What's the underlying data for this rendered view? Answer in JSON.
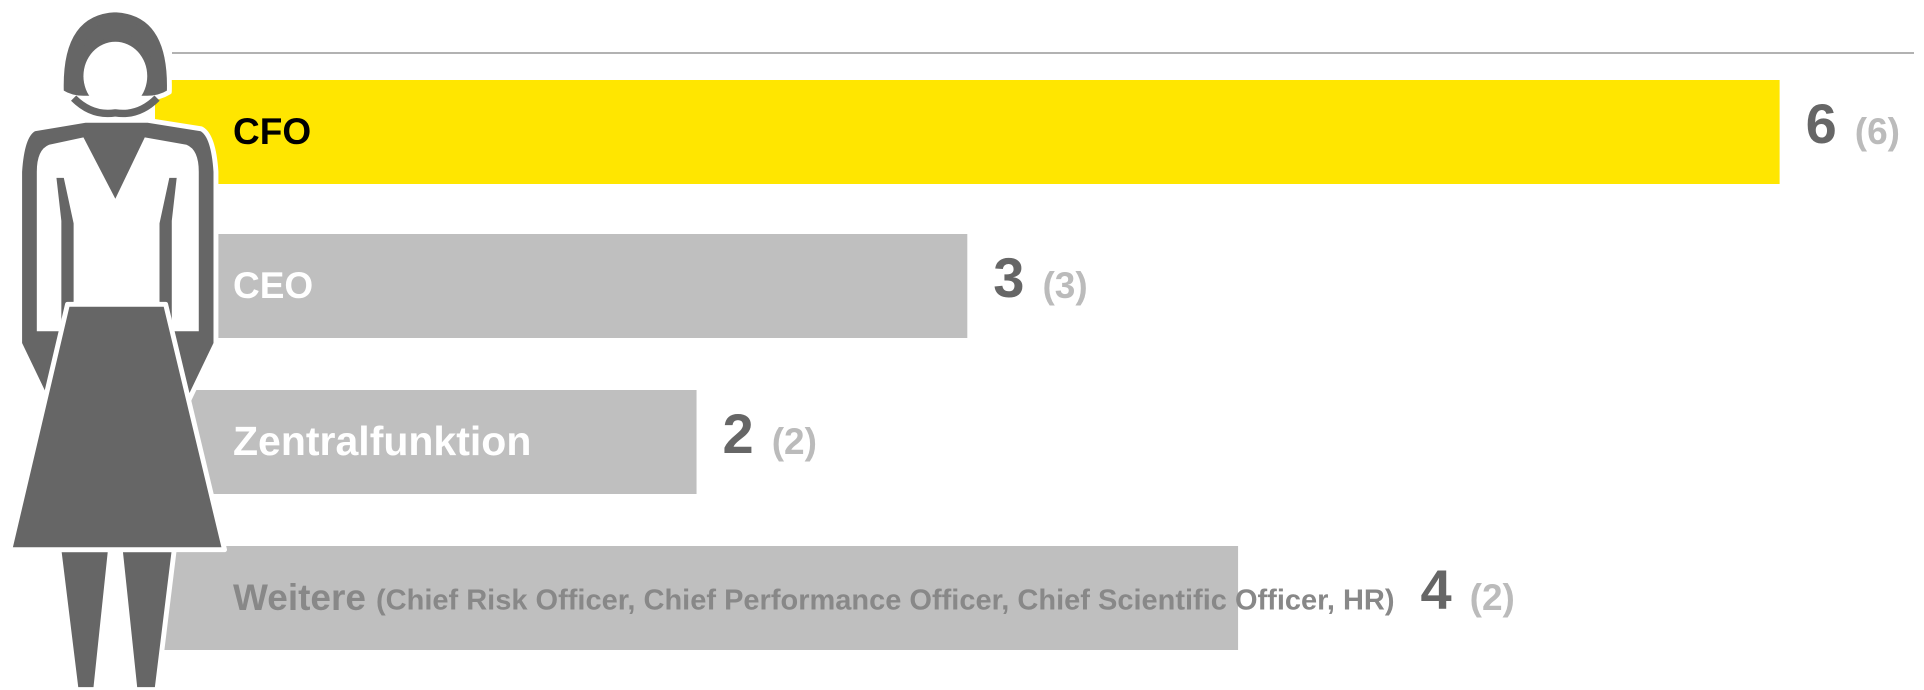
{
  "chart_data": {
    "type": "bar",
    "orientation": "horizontal",
    "categories": [
      "CFO",
      "CEO",
      "Zentralfunktion",
      "Weitere"
    ],
    "category_details": [
      null,
      null,
      null,
      "(Chief Risk Officer, Chief Performance Officer, Chief Scientific Officer, HR)"
    ],
    "label_colors": [
      "#000000",
      "#ffffff",
      "#ffffff",
      "#ffffff"
    ],
    "series": [
      {
        "values": [
          6,
          3,
          2,
          4
        ],
        "colors": [
          "#ffe600",
          "#bfbfbf",
          "#bfbfbf",
          "#bfbfbf"
        ]
      },
      {
        "values": [
          6,
          3,
          2,
          2
        ],
        "value_labels": [
          "(6)",
          "(3)",
          "(2)",
          "(2)"
        ]
      }
    ],
    "xlim": [
      0,
      6.5
    ]
  }
}
